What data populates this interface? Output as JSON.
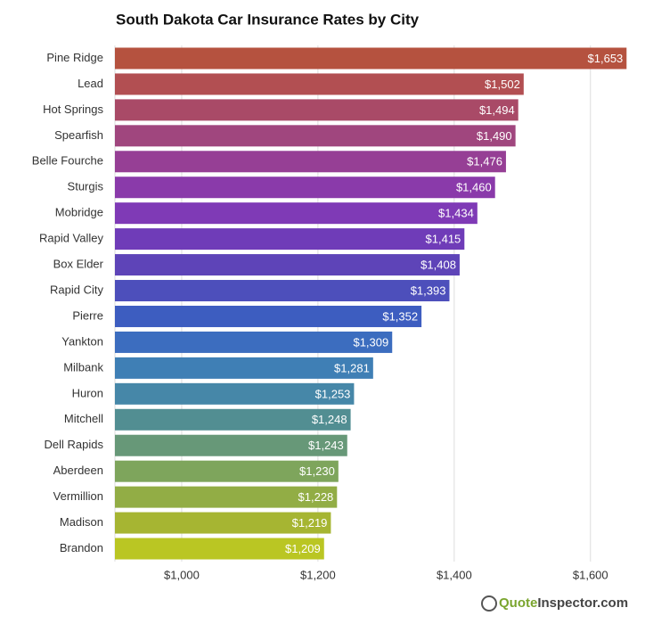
{
  "chart_data": {
    "type": "barh",
    "title": "South Dakota Car Insurance Rates by City",
    "categories": [
      "Pine Ridge",
      "Lead",
      "Hot Springs",
      "Spearfish",
      "Belle Fourche",
      "Sturgis",
      "Mobridge",
      "Rapid Valley",
      "Box Elder",
      "Rapid City",
      "Pierre",
      "Yankton",
      "Milbank",
      "Huron",
      "Mitchell",
      "Dell Rapids",
      "Aberdeen",
      "Vermillion",
      "Madison",
      "Brandon"
    ],
    "values": [
      1653,
      1502,
      1494,
      1490,
      1476,
      1460,
      1434,
      1415,
      1408,
      1393,
      1352,
      1309,
      1281,
      1253,
      1248,
      1243,
      1230,
      1228,
      1219,
      1209
    ],
    "value_labels": [
      "$1,653",
      "$1,502",
      "$1,494",
      "$1,490",
      "$1,476",
      "$1,460",
      "$1,434",
      "$1,415",
      "$1,408",
      "$1,393",
      "$1,352",
      "$1,309",
      "$1,281",
      "$1,253",
      "$1,248",
      "$1,243",
      "$1,230",
      "$1,228",
      "$1,219",
      "$1,209"
    ],
    "colors": [
      "#b5523f",
      "#b24f52",
      "#a94a67",
      "#a0467e",
      "#963f95",
      "#8a3aaa",
      "#7f3ab6",
      "#6f3cb8",
      "#5e44b8",
      "#4d4fbb",
      "#3d5dc0",
      "#3c6dbf",
      "#3f7fb5",
      "#4687a8",
      "#528e92",
      "#679878",
      "#7ea55c",
      "#92ad45",
      "#a6b532",
      "#bac623"
    ],
    "xlim": [
      902,
      1667
    ],
    "xticks": [
      {
        "value": 1000,
        "label": "$1,000"
      },
      {
        "value": 1200,
        "label": "$1,200"
      },
      {
        "value": 1400,
        "label": "$1,400"
      },
      {
        "value": 1600,
        "label": "$1,600"
      }
    ],
    "grid": true,
    "watermark": [
      "Quote",
      "Inspector.com"
    ]
  }
}
